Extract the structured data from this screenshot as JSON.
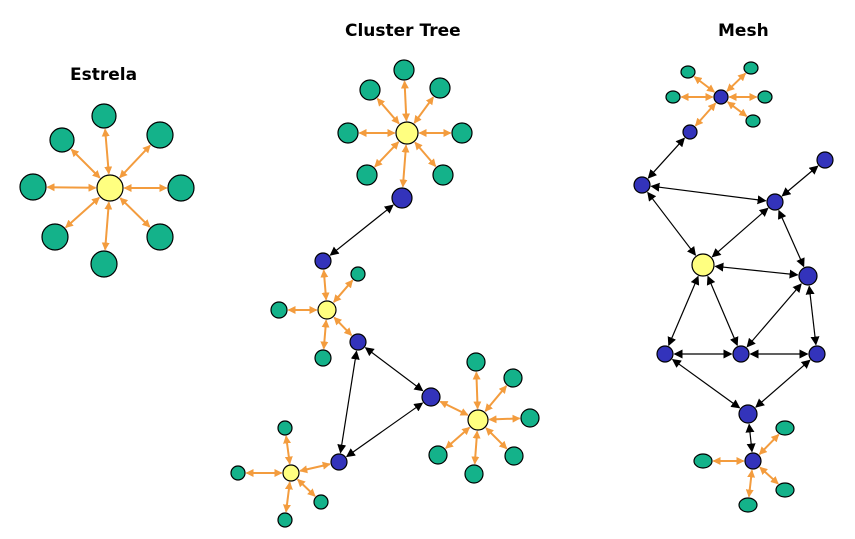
{
  "diagram": {
    "titles": {
      "star": "Estrela",
      "cluster_tree": "Cluster Tree",
      "mesh": "Mesh"
    },
    "colors": {
      "coordinator": "#ffff80",
      "router": "#3333bb",
      "end_device": "#14b28a",
      "star_link": "#f39c3e",
      "router_link": "#000000"
    },
    "node_types": [
      "coordinator",
      "router",
      "end_device"
    ]
  }
}
